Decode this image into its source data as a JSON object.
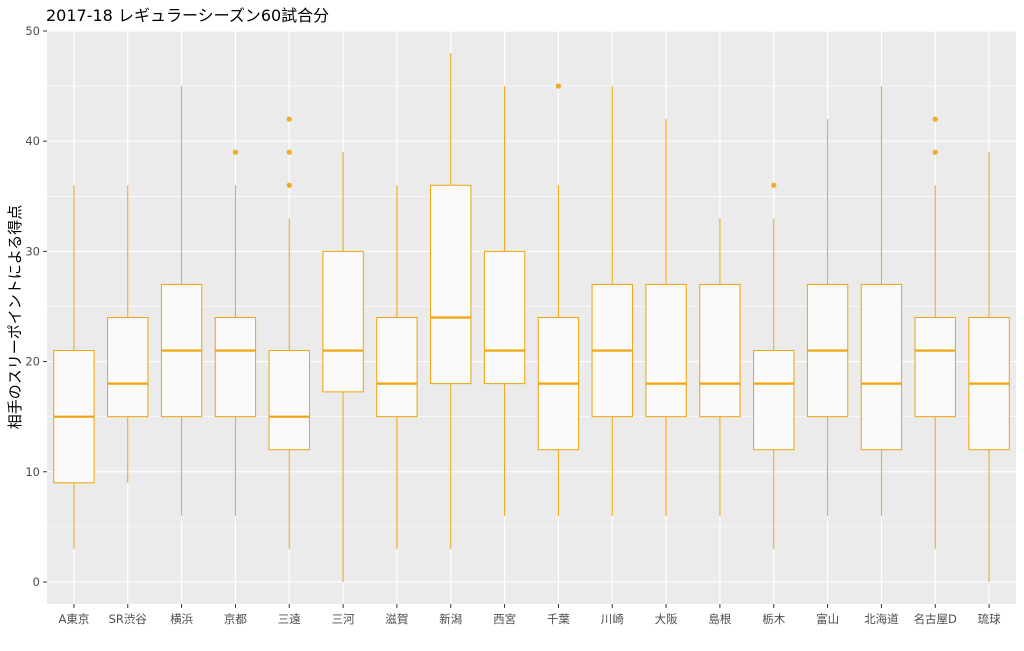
{
  "chart_data": {
    "type": "boxplot",
    "title": "2017-18 レギュラーシーズン60試合分",
    "xlabel": "",
    "ylabel": "相手のスリーポイントによる得点",
    "ylim": [
      -2,
      50
    ],
    "yticks": [
      0,
      10,
      20,
      30,
      40,
      50
    ],
    "grid": true,
    "legend": "none",
    "colors": {
      "panel": "#ebebeb",
      "grid": "#ffffff",
      "box_stroke": "#f0a30a",
      "box_fill": "#fafafa",
      "outlier": "#f0a30a"
    },
    "categories": [
      "A東京",
      "SR渋谷",
      "横浜",
      "京都",
      "三遠",
      "三河",
      "滋賀",
      "新潟",
      "西宮",
      "千葉",
      "川崎",
      "大阪",
      "島根",
      "栃木",
      "富山",
      "北海道",
      "名古屋D",
      "琉球"
    ],
    "series": [
      {
        "min": 3,
        "q1": 9,
        "median": 15,
        "q3": 21,
        "max": 36,
        "outliers": []
      },
      {
        "min": 9,
        "q1": 15,
        "median": 18,
        "q3": 24,
        "max": 36,
        "outliers": []
      },
      {
        "min": 6,
        "q1": 15,
        "median": 21,
        "q3": 27,
        "max": 45,
        "outliers": []
      },
      {
        "min": 6,
        "q1": 15,
        "median": 21,
        "q3": 24,
        "max": 36,
        "outliers": [
          39
        ]
      },
      {
        "min": 3,
        "q1": 12,
        "median": 15,
        "q3": 21,
        "max": 33,
        "outliers": [
          36,
          39,
          42
        ]
      },
      {
        "min": 0,
        "q1": 17.25,
        "median": 21,
        "q3": 30,
        "max": 39,
        "outliers": []
      },
      {
        "min": 3,
        "q1": 15,
        "median": 18,
        "q3": 24,
        "max": 36,
        "outliers": []
      },
      {
        "min": 3,
        "q1": 18,
        "median": 24,
        "q3": 36,
        "max": 48,
        "outliers": []
      },
      {
        "min": 6,
        "q1": 18,
        "median": 21,
        "q3": 30,
        "max": 45,
        "outliers": []
      },
      {
        "min": 6,
        "q1": 12,
        "median": 18,
        "q3": 24,
        "max": 36,
        "outliers": [
          45
        ]
      },
      {
        "min": 6,
        "q1": 15,
        "median": 21,
        "q3": 27,
        "max": 45,
        "outliers": []
      },
      {
        "min": 6,
        "q1": 15,
        "median": 18,
        "q3": 27,
        "max": 42,
        "outliers": []
      },
      {
        "min": 6,
        "q1": 15,
        "median": 18,
        "q3": 27,
        "max": 33,
        "outliers": []
      },
      {
        "min": 3,
        "q1": 12,
        "median": 18,
        "q3": 21,
        "max": 33,
        "outliers": [
          36
        ]
      },
      {
        "min": 6,
        "q1": 15,
        "median": 21,
        "q3": 27,
        "max": 42,
        "outliers": []
      },
      {
        "min": 6,
        "q1": 12,
        "median": 18,
        "q3": 27,
        "max": 45,
        "outliers": []
      },
      {
        "min": 3,
        "q1": 15,
        "median": 21,
        "q3": 24,
        "max": 36,
        "outliers": [
          39,
          42
        ]
      },
      {
        "min": 0,
        "q1": 12,
        "median": 18,
        "q3": 24,
        "max": 39,
        "outliers": []
      }
    ]
  }
}
